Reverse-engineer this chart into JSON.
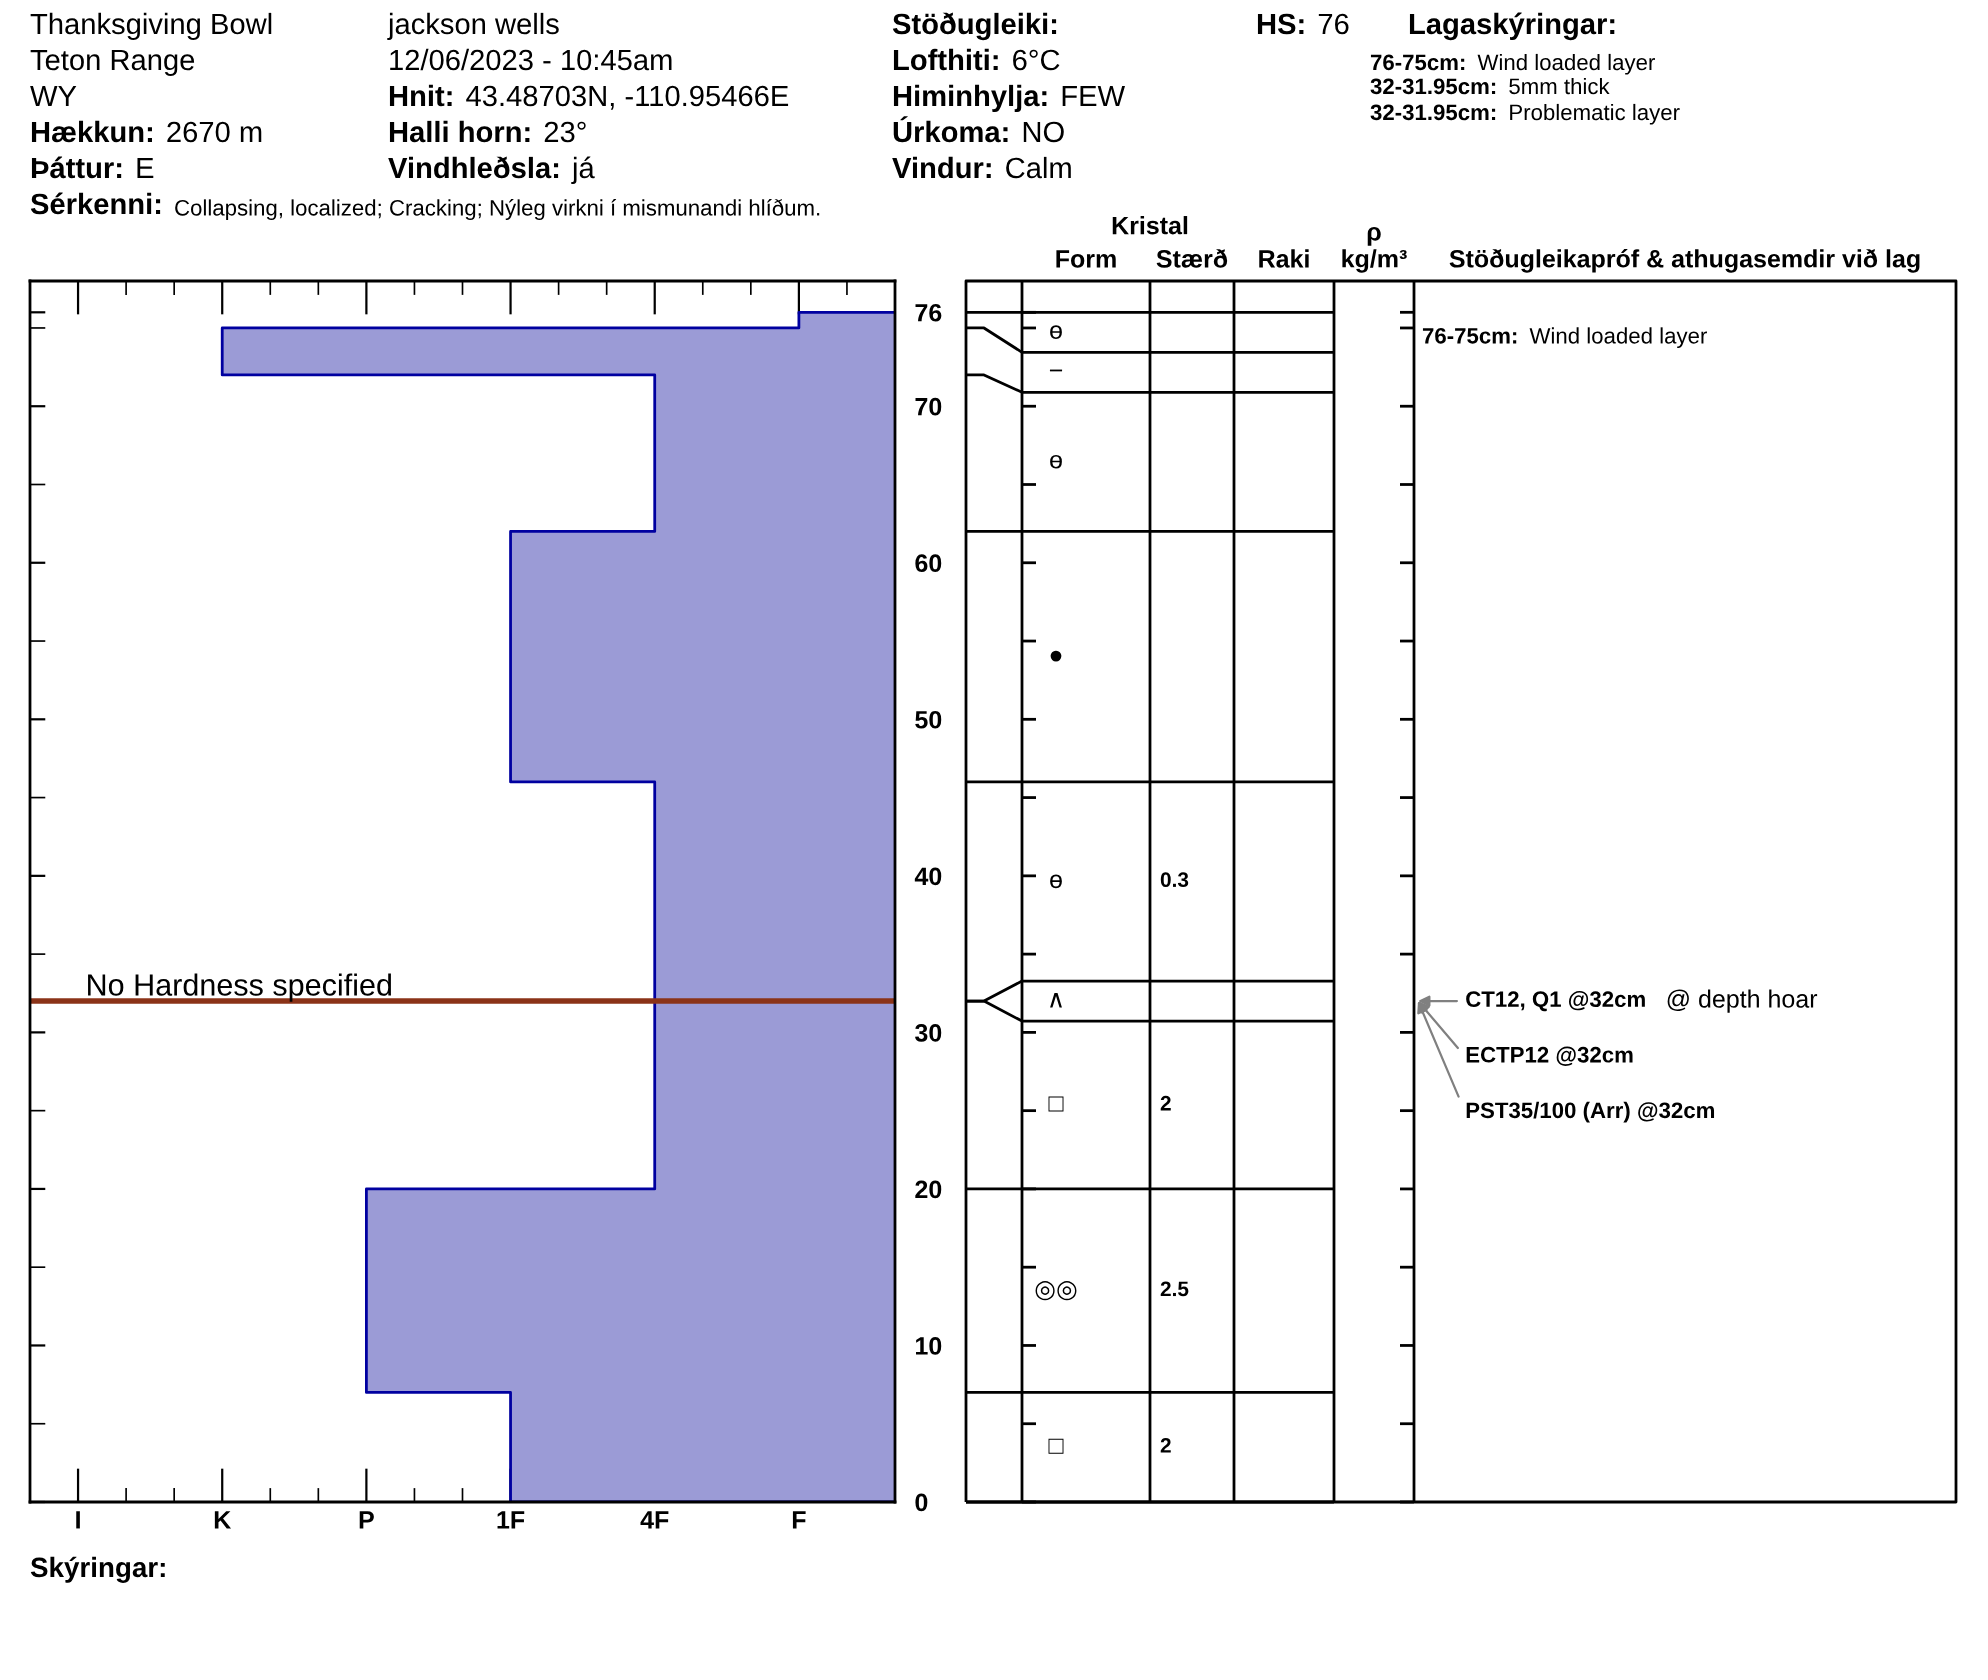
{
  "chart_data": [
    {
      "type": "other",
      "annotations": [
        "Thanksgiving Bowl",
        "Teton Range",
        "WY",
        "Hækkun: 2670 m",
        "Þáttur: E",
        "jackson wells",
        "12/06/2023 - 10:45am",
        "Hnit: 43.48703N, -110.95466E",
        "Halli horn: 23°",
        "Vindhleðsla: já",
        "Stöðugleiki:",
        "Lofthiti: 6°C",
        "Himinhylja: FEW",
        "Úrkoma: NO",
        "Vindur: Calm",
        "HS:76",
        "Lagaskýringar:",
        "76-75cm: Wind loaded layer",
        "32-31.95cm: 5mm thick",
        "32-31.95cm: Problematic layer",
        "Sérkenni: Collapsing, localized; Cracking; Nýleg virkni í mismunandi hlíðum."
      ]
    },
    {
      "type": "area",
      "categories": [
        "I",
        "K",
        "P",
        "1F",
        "4F",
        "F"
      ],
      "series": [
        {
          "color": "#9b9bd6",
          "x": [
            "F",
            "F",
            "K",
            "K",
            "4F",
            "4F",
            "1F",
            "1F",
            "4F",
            "4F",
            "P",
            "P",
            "1F",
            "1F"
          ],
          "values": [
            76,
            75,
            75,
            72,
            72,
            62,
            62,
            46,
            46,
            20,
            20,
            7,
            7,
            0
          ]
        }
      ],
      "ylim": [
        0,
        78
      ],
      "yticks": [
        0,
        {
          "value": 5,
          "label": null
        },
        10,
        {
          "value": 15,
          "label": null
        },
        20,
        {
          "value": 25,
          "label": null
        },
        30,
        {
          "value": 35,
          "label": null
        },
        40,
        {
          "value": 45,
          "label": null
        },
        50,
        {
          "value": 55,
          "label": null
        },
        60,
        {
          "value": 65,
          "label": null
        },
        70,
        {
          "value": 75,
          "label": null
        },
        76
      ],
      "ref_lines": [
        {
          "axis": "y",
          "value": 32,
          "label": "No Hardness specified",
          "color": "#8b3318"
        }
      ],
      "annotations": [
        "Skýringar:"
      ]
    },
    {
      "type": "other",
      "categories": [
        "Form",
        "Stærð",
        "Raki",
        "ρ\nkg/m³",
        "Stöðugleikapróf & athugasemdir við lag"
      ],
      "cell_labels": [
        [
          "ө",
          null,
          null,
          null,
          "76-75cm: Wind loaded layer"
        ],
        [
          "−",
          null,
          null,
          null,
          null
        ],
        [
          "ө",
          null,
          null,
          null,
          null
        ],
        [
          "●",
          null,
          null,
          null,
          null
        ],
        [
          "ө",
          "0.3",
          null,
          null,
          null
        ],
        [
          "∧",
          null,
          null,
          null,
          null
        ],
        [
          "□",
          "2",
          null,
          null,
          null
        ],
        [
          "◎◎",
          "2.5",
          null,
          null,
          null
        ],
        [
          "□",
          "2",
          null,
          null,
          null
        ]
      ],
      "annotations": [
        "Kristal",
        "CT12, Q1 @32cm  @ depth hoar",
        "ECTP12 @32cm",
        "PST35/100 (Arr) @32cm"
      ]
    }
  ]
}
